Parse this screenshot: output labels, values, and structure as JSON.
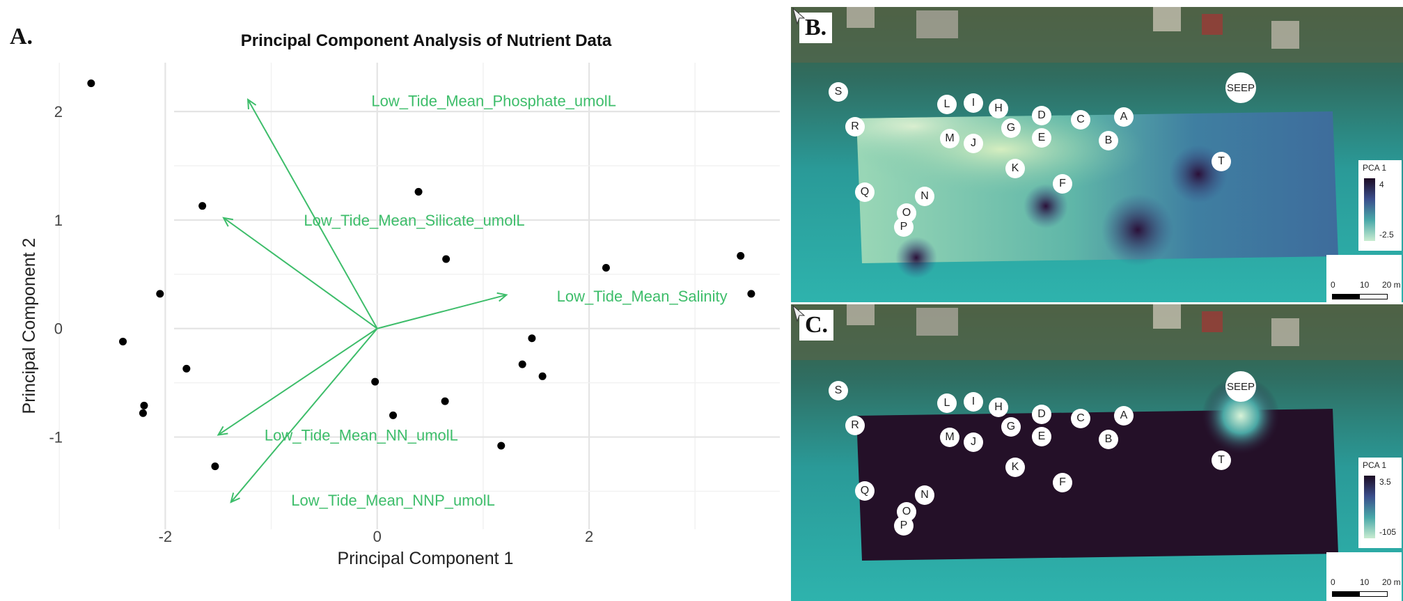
{
  "panel_a_label": "A.",
  "panel_b_label": "B.",
  "panel_c_label": "C.",
  "chart_data": {
    "type": "scatter",
    "title": "Principal Component Analysis of Nutrient Data",
    "xlabel": "Principal Component 1",
    "ylabel": "Principal Component 2",
    "xlim": [
      -3.1,
      3.8
    ],
    "ylim": [
      -1.85,
      2.45
    ],
    "xticks": [
      -2,
      0,
      2
    ],
    "yticks": [
      -1,
      0,
      1,
      2
    ],
    "grid": true,
    "point_color": "#000000",
    "arrow_color": "#3dbd6a",
    "points": [
      {
        "x": -2.7,
        "y": 2.26
      },
      {
        "x": -1.65,
        "y": 1.13
      },
      {
        "x": -2.05,
        "y": 0.32
      },
      {
        "x": -2.4,
        "y": -0.12
      },
      {
        "x": -1.8,
        "y": -0.37
      },
      {
        "x": -2.2,
        "y": -0.71
      },
      {
        "x": -2.21,
        "y": -0.78
      },
      {
        "x": -1.53,
        "y": -1.27
      },
      {
        "x": 0.39,
        "y": 1.26
      },
      {
        "x": 0.65,
        "y": 0.64
      },
      {
        "x": 2.16,
        "y": 0.56
      },
      {
        "x": 3.43,
        "y": 0.67
      },
      {
        "x": 3.53,
        "y": 0.32
      },
      {
        "x": 1.46,
        "y": -0.09
      },
      {
        "x": 1.37,
        "y": -0.33
      },
      {
        "x": 1.56,
        "y": -0.44
      },
      {
        "x": -0.02,
        "y": -0.49
      },
      {
        "x": 0.15,
        "y": -0.8
      },
      {
        "x": 0.64,
        "y": -0.67
      },
      {
        "x": 1.17,
        "y": -1.08
      }
    ],
    "loadings": [
      {
        "name": "Low_Tide_Mean_Phosphate_umolL",
        "x": -1.22,
        "y": 2.11,
        "lx": 1.1,
        "ly": 2.1
      },
      {
        "name": "Low_Tide_Mean_Silicate_umolL",
        "x": -1.45,
        "y": 1.02,
        "lx": 0.35,
        "ly": 1.0
      },
      {
        "name": "Low_Tide_Mean_Salinity",
        "x": 1.22,
        "y": 0.31,
        "lx": 2.5,
        "ly": 0.3
      },
      {
        "name": "Low_Tide_Mean_NN_umolL",
        "x": -1.5,
        "y": -0.98,
        "lx": -0.15,
        "ly": -0.98
      },
      {
        "name": "Low_Tide_Mean_NNP_umolL",
        "x": -1.38,
        "y": -1.6,
        "lx": 0.15,
        "ly": -1.58
      }
    ]
  },
  "map_b": {
    "legend_title": "PCA 1",
    "legend_max": "4",
    "legend_min": "-2.5",
    "scale_labels": [
      "0",
      "10",
      "20 m"
    ]
  },
  "map_c": {
    "legend_title": "PCA 1",
    "legend_max": "3.5",
    "legend_min": "-105",
    "scale_labels": [
      "0",
      "10",
      "20 m"
    ]
  },
  "sites": [
    {
      "label": "S"
    },
    {
      "label": "R"
    },
    {
      "label": "Q"
    },
    {
      "label": "O"
    },
    {
      "label": "P"
    },
    {
      "label": "N"
    },
    {
      "label": "L"
    },
    {
      "label": "M"
    },
    {
      "label": "I"
    },
    {
      "label": "J"
    },
    {
      "label": "H"
    },
    {
      "label": "G"
    },
    {
      "label": "K"
    },
    {
      "label": "D"
    },
    {
      "label": "E"
    },
    {
      "label": "F"
    },
    {
      "label": "C"
    },
    {
      "label": "B"
    },
    {
      "label": "A"
    },
    {
      "label": "T"
    },
    {
      "label": "SEEP"
    }
  ]
}
